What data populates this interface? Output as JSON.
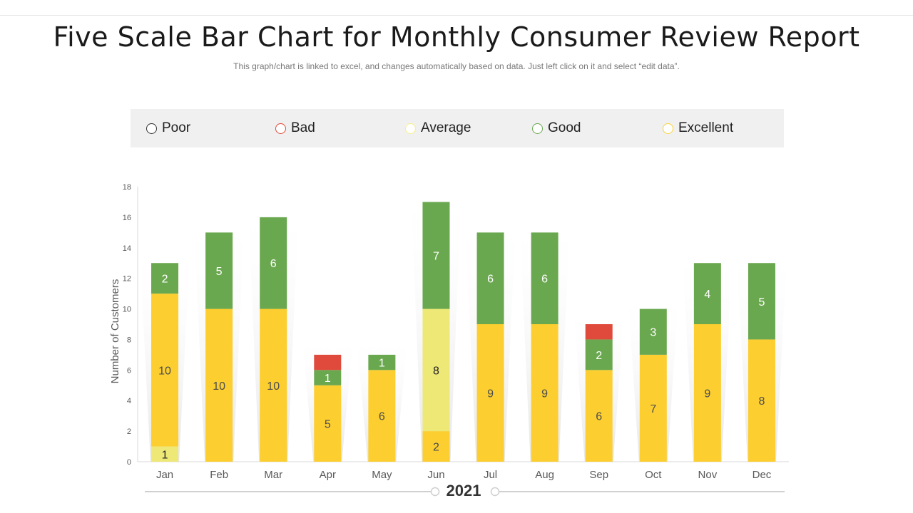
{
  "header": {
    "title": "Five Scale Bar Chart for Monthly Consumer Review Report",
    "subtitle": "This graph/chart is linked to excel, and changes automatically based on data. Just left click on it and select “edit data”."
  },
  "legend": {
    "items": [
      {
        "label": "Poor",
        "color": "#333333"
      },
      {
        "label": "Bad",
        "color": "#e04a3c"
      },
      {
        "label": "Average",
        "color": "#f7ef88"
      },
      {
        "label": "Good",
        "color": "#6aa84f"
      },
      {
        "label": "Excellent",
        "color": "#f9d23a"
      }
    ]
  },
  "footer": {
    "year": "2021"
  },
  "chart_data": {
    "type": "bar",
    "stacked": true,
    "ylabel": "Number of Customers",
    "xlabel": "",
    "ylim": [
      0,
      18
    ],
    "yticks": [
      0,
      2,
      4,
      6,
      8,
      10,
      12,
      14,
      16,
      18
    ],
    "categories": [
      "Jan",
      "Feb",
      "Mar",
      "Apr",
      "May",
      "Jun",
      "Jul",
      "Aug",
      "Sep",
      "Oct",
      "Nov",
      "Dec"
    ],
    "series": [
      {
        "name": "Average",
        "color": "#eee877",
        "values": [
          1,
          0,
          0,
          0,
          0,
          0,
          0,
          0,
          0,
          0,
          0,
          0
        ]
      },
      {
        "name": "Excellent",
        "color": "#fcce2f",
        "values": [
          0,
          10,
          10,
          5,
          6,
          2,
          9,
          9,
          6,
          7,
          9,
          8
        ]
      },
      {
        "name": "Average",
        "color": "#eee877",
        "values": [
          0,
          0,
          0,
          0,
          0,
          8,
          0,
          0,
          0,
          0,
          0,
          0
        ]
      },
      {
        "name": "Excellent",
        "color": "#fcce2f",
        "values": [
          10,
          0,
          0,
          0,
          0,
          0,
          0,
          0,
          0,
          0,
          0,
          0
        ]
      },
      {
        "name": "Good",
        "color": "#6aa84f",
        "values": [
          2,
          5,
          6,
          1,
          1,
          7,
          6,
          6,
          2,
          3,
          4,
          5
        ]
      },
      {
        "name": "Bad",
        "color": "#e04a3c",
        "values": [
          0,
          0,
          0,
          1,
          0,
          0,
          0,
          0,
          1,
          0,
          0,
          0
        ]
      }
    ],
    "data_labels": [
      [
        "1",
        "",
        "",
        "10",
        "2",
        ""
      ],
      [
        "",
        "10",
        "",
        "",
        "5",
        ""
      ],
      [
        "",
        "10",
        "",
        "",
        "6",
        ""
      ],
      [
        "",
        "5",
        "",
        "",
        "1",
        ""
      ],
      [
        "",
        "6",
        "",
        "",
        "1",
        ""
      ],
      [
        "",
        "2",
        "8",
        "",
        "7",
        ""
      ],
      [
        "",
        "9",
        "",
        "",
        "6",
        ""
      ],
      [
        "",
        "9",
        "",
        "",
        "6",
        ""
      ],
      [
        "",
        "6",
        "",
        "",
        "2",
        ""
      ],
      [
        "",
        "7",
        "",
        "",
        "3",
        ""
      ],
      [
        "",
        "9",
        "",
        "",
        "4",
        ""
      ],
      [
        "",
        "8",
        "",
        "",
        "5",
        ""
      ]
    ],
    "grid": false,
    "legend_position": "top"
  }
}
